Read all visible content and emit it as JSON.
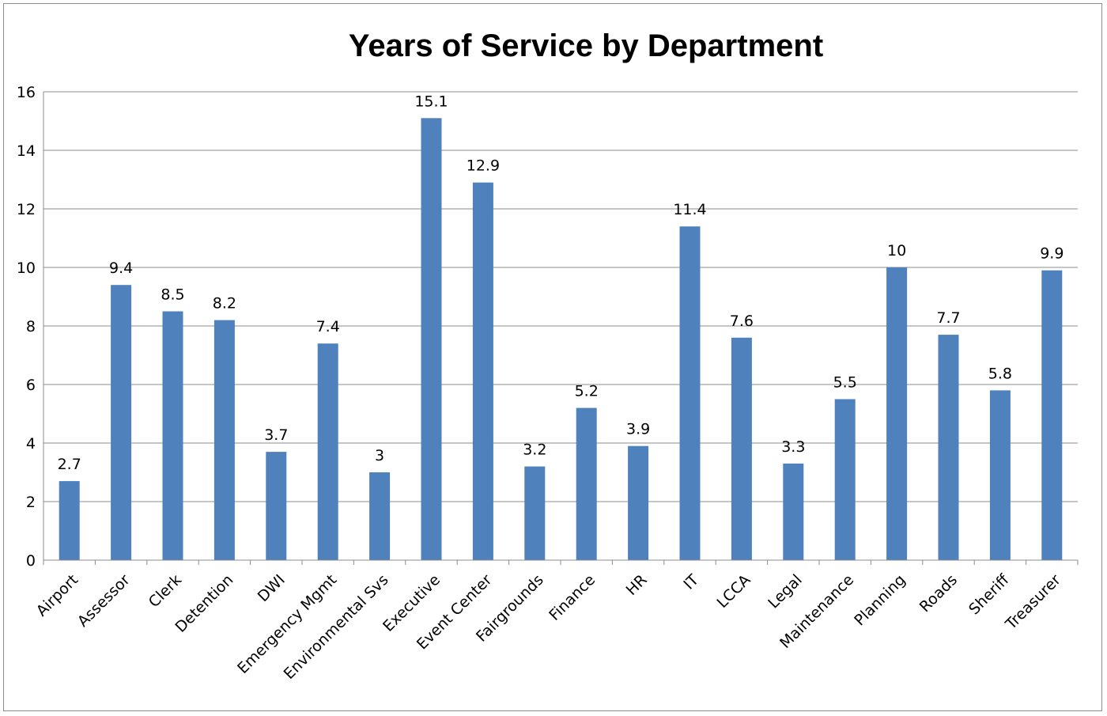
{
  "chart_data": {
    "type": "bar",
    "title": "Years of Service by Department",
    "xlabel": "",
    "ylabel": "",
    "ylim": [
      0,
      16
    ],
    "yticks": [
      0,
      2,
      4,
      6,
      8,
      10,
      12,
      14,
      16
    ],
    "grid": true,
    "legend": "none",
    "bar_color": "#4f81bd",
    "categories": [
      "Airport",
      "Assessor",
      "Clerk",
      "Detention",
      "DWI",
      "Emergency Mgmt",
      "Environmental Svs",
      "Executive",
      "Event Center",
      "Fairgrounds",
      "Finance",
      "HR",
      "IT",
      "LCCA",
      "Legal",
      "Maintenance",
      "Planning",
      "Roads",
      "Sheriff",
      "Treasurer"
    ],
    "values": [
      2.7,
      9.4,
      8.5,
      8.2,
      3.7,
      7.4,
      3,
      15.1,
      12.9,
      3.2,
      5.2,
      3.9,
      11.4,
      7.6,
      3.3,
      5.5,
      10,
      7.7,
      5.8,
      9.9
    ],
    "data_labels": [
      "2.7",
      "9.4",
      "8.5",
      "8.2",
      "3.7",
      "7.4",
      "3",
      "15.1",
      "12.9",
      "3.2",
      "5.2",
      "3.9",
      "11.4",
      "7.6",
      "3.3",
      "5.5",
      "10",
      "7.7",
      "5.8",
      "9.9"
    ]
  }
}
